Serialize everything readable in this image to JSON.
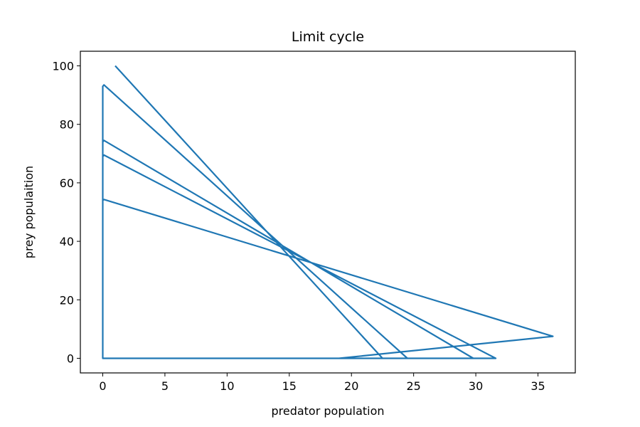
{
  "chart_data": {
    "type": "line",
    "title": "Limit cycle",
    "xlabel": "predator population",
    "ylabel": "prey populaition",
    "xlim": [
      -1.8,
      38
    ],
    "ylim": [
      -5,
      105
    ],
    "xticks": [
      0,
      5,
      10,
      15,
      20,
      25,
      30,
      35
    ],
    "yticks": [
      0,
      20,
      40,
      60,
      80,
      100
    ],
    "grid": false,
    "line_color": "#1f77b4",
    "series": [
      {
        "x": [
          1.0,
          22.5,
          0.0,
          0.0,
          0.1,
          24.5,
          0.0,
          0.0,
          0.1,
          29.8,
          0.0,
          0.0,
          0.1,
          31.6,
          0.0,
          0.0,
          0.1,
          36.2,
          19.0,
          0.0
        ],
        "y": [
          100,
          0,
          0,
          93,
          93.5,
          0,
          0,
          74,
          74.5,
          0,
          0,
          69,
          69.5,
          0,
          0,
          54,
          54.3,
          7.5,
          0,
          0
        ]
      }
    ]
  }
}
